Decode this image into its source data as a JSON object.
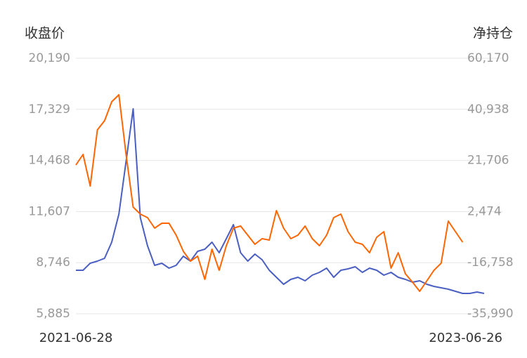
{
  "chart_data": {
    "type": "line",
    "y_label": "收盘价",
    "y2_label": "净持仓",
    "categories": [
      "2021-06-28",
      null,
      null,
      null,
      null,
      null,
      null,
      null,
      null,
      null,
      null,
      null,
      null,
      null,
      null,
      null,
      null,
      null,
      null,
      null,
      null,
      null,
      null,
      null,
      null,
      null,
      null,
      null,
      null,
      null,
      null,
      null,
      null,
      null,
      null,
      null,
      null,
      null,
      null,
      null,
      null,
      null,
      null,
      null,
      null,
      null,
      null,
      null,
      null,
      null,
      null,
      null,
      null,
      null,
      null,
      null,
      null,
      "2023-06-26"
    ],
    "series": [
      {
        "color": "#4a5fc1",
        "values": [
          8322,
          8322,
          8715,
          8833,
          8990,
          9894,
          11466,
          14413,
          17361,
          11269,
          9697,
          8597,
          8715,
          8440,
          8597,
          9108,
          8833,
          9383,
          9501,
          9894,
          9304,
          10090,
          10876,
          9304,
          8833,
          9226,
          8911,
          8322,
          7929,
          7535,
          7811,
          7929,
          7732,
          8047,
          8204,
          8440,
          7929,
          8322,
          8400,
          8518,
          8204,
          8440,
          8322,
          8047,
          8204,
          7929,
          7811,
          7653,
          7732,
          7535,
          7418,
          7339,
          7261,
          7143,
          7025,
          7025,
          7103,
          7025
        ]
      },
      {
        "color": "#ff6600",
        "axis": "y2",
        "values": [
          20020,
          23983,
          12094,
          33230,
          36665,
          43798,
          46440,
          23983,
          4168,
          1526,
          205,
          -3758,
          -1908,
          -1908,
          -6399,
          -12476,
          -16175,
          -14326,
          -23044,
          -11684,
          -19610,
          -10363,
          -3758,
          -2966,
          -6399,
          -9834,
          -7720,
          -8249,
          2847,
          -3758,
          -7720,
          -6399,
          -2966,
          -7720,
          -10363,
          -6399,
          205,
          1526,
          -5078,
          -9041,
          -9834,
          -13004,
          -7192,
          -5078,
          -18817,
          -13004,
          -20931,
          -24102,
          -27536,
          -23573,
          -19610,
          -16968,
          -1116,
          -5078,
          -9041,
          null,
          null,
          null
        ]
      }
    ],
    "ylim": [
      5885,
      20190
    ],
    "yticks": [
      {
        "value": 5885,
        "label": "5,885"
      },
      {
        "value": 8746,
        "label": "8,746"
      },
      {
        "value": 11607,
        "label": "11,607"
      },
      {
        "value": 14468,
        "label": "14,468"
      },
      {
        "value": 17329,
        "label": "17,329"
      },
      {
        "value": 20190,
        "label": "20,190"
      }
    ],
    "y2lim": [
      -35990,
      60170
    ],
    "y2ticks": [
      {
        "value": -35990,
        "label": "-35,990"
      },
      {
        "value": -16758,
        "label": "-16,758"
      },
      {
        "value": 2474,
        "label": "2,474"
      },
      {
        "value": 21706,
        "label": "21,706"
      },
      {
        "value": 40938,
        "label": "40,938"
      },
      {
        "value": 60170,
        "label": "60,170"
      }
    ],
    "grid": true
  }
}
